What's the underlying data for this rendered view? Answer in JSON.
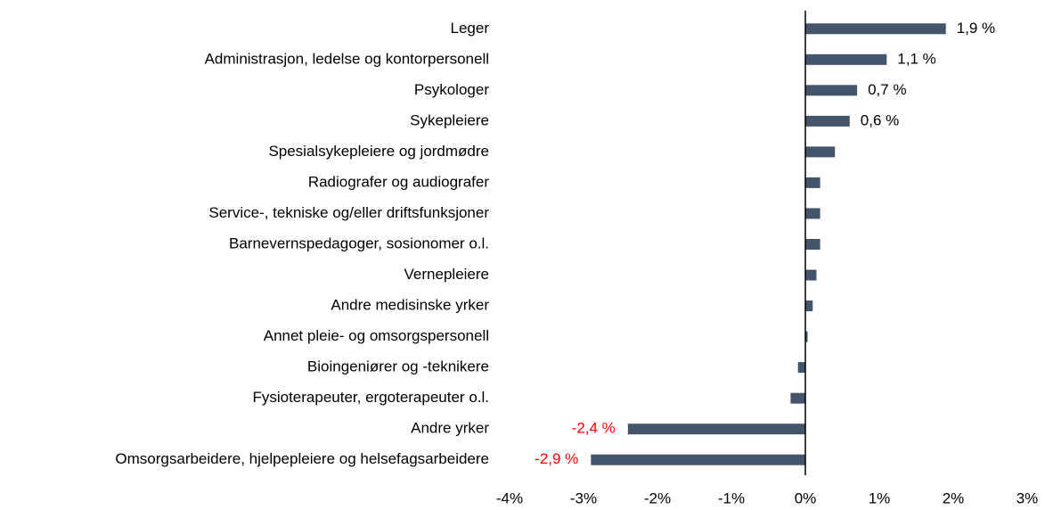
{
  "chart_data": {
    "type": "hbar",
    "categories": [
      "Leger",
      "Administrasjon, ledelse og kontorpersonell",
      "Psykologer",
      "Sykepleiere",
      "Spesialsykepleiere og jordmødre",
      "Radiografer og audiografer",
      "Service-, tekniske og/eller driftsfunksjoner",
      "Barnevernspedagoger, sosionomer o.l.",
      "Vernepleiere",
      "Andre medisinske yrker",
      "Annet pleie- og omsorgspersonell",
      "Bioingeniører og -teknikere",
      "Fysioterapeuter, ergoterapeuter o.l.",
      "Andre yrker",
      "Omsorgsarbeidere, hjelpepleiere og helsefagsarbeidere"
    ],
    "values": [
      1.9,
      1.1,
      0.7,
      0.6,
      0.4,
      0.2,
      0.2,
      0.2,
      0.15,
      0.1,
      0.03,
      -0.1,
      -0.2,
      -2.4,
      -2.9
    ],
    "value_labels": [
      "1,9 %",
      "1,1 %",
      "0,7 %",
      "0,6 %",
      null,
      null,
      null,
      null,
      null,
      null,
      null,
      null,
      null,
      "-2,4 %",
      "-2,9 %"
    ],
    "color": "#44546a",
    "value_label_color": "#000000",
    "negative_value_label_color": "#ff0000",
    "xlim": [
      -4,
      3
    ],
    "xticks": [
      {
        "value": -4,
        "label": "-4%"
      },
      {
        "value": -3,
        "label": "-3%"
      },
      {
        "value": -2,
        "label": "-2%"
      },
      {
        "value": -1,
        "label": "-1%"
      },
      {
        "value": 0,
        "label": "0%"
      },
      {
        "value": 1,
        "label": "1%"
      },
      {
        "value": 2,
        "label": "2%"
      },
      {
        "value": 3,
        "label": "3%"
      }
    ],
    "grid": false
  }
}
